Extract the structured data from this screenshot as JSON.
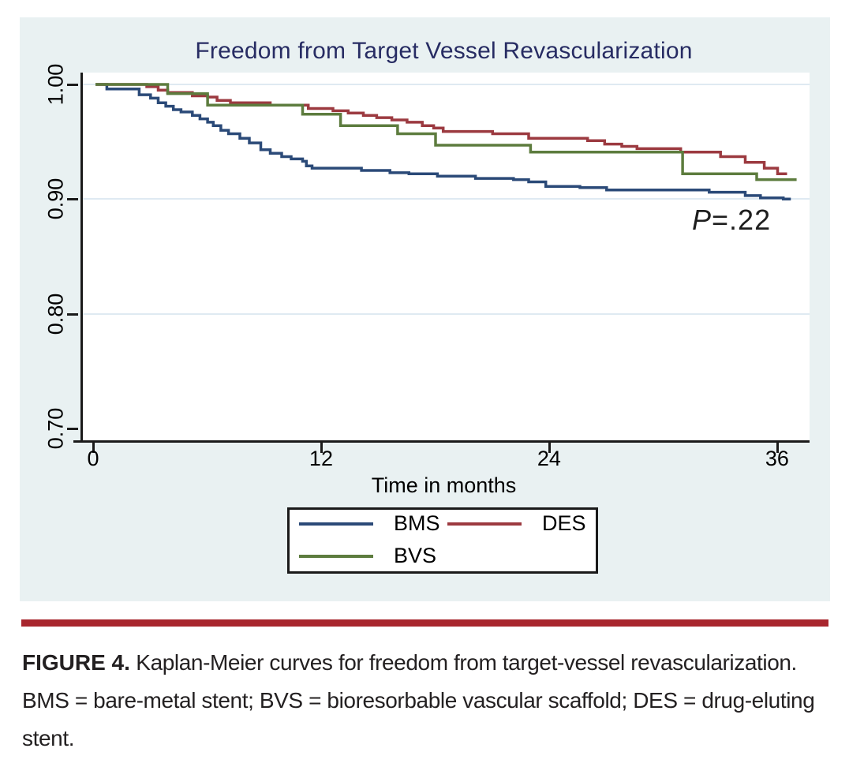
{
  "chart_data": {
    "type": "line",
    "step": true,
    "title": "Freedom from Target Vessel Revascularization",
    "xlabel": "Time in months",
    "ylabel": "",
    "xlim": [
      0,
      37.5
    ],
    "ylim": [
      0.69,
      1.005
    ],
    "xticks": [
      {
        "value": 0,
        "label": "0"
      },
      {
        "value": 12,
        "label": "12"
      },
      {
        "value": 24,
        "label": "24"
      },
      {
        "value": 36,
        "label": "36"
      }
    ],
    "yticks": [
      {
        "value": 1.0,
        "label": "1.00"
      },
      {
        "value": 0.9,
        "label": "0.90"
      },
      {
        "value": 0.8,
        "label": "0.80"
      },
      {
        "value": 0.7,
        "label": "0.70"
      }
    ],
    "grid_lines": [
      1.0,
      0.9,
      0.8
    ],
    "legend_position": "below",
    "annotation": {
      "italic": "P",
      "text": "=.22"
    },
    "series": [
      {
        "name": "BMS",
        "color": "#2b4a78",
        "points": [
          [
            0,
            1.0
          ],
          [
            0.6,
            0.996
          ],
          [
            2.3,
            0.991
          ],
          [
            2.9,
            0.988
          ],
          [
            3.3,
            0.984
          ],
          [
            3.7,
            0.981
          ],
          [
            4.1,
            0.978
          ],
          [
            4.5,
            0.976
          ],
          [
            5.1,
            0.973
          ],
          [
            5.5,
            0.97
          ],
          [
            5.9,
            0.967
          ],
          [
            6.2,
            0.964
          ],
          [
            6.6,
            0.96
          ],
          [
            7.0,
            0.957
          ],
          [
            7.6,
            0.953
          ],
          [
            8.1,
            0.949
          ],
          [
            8.7,
            0.943
          ],
          [
            9.2,
            0.94
          ],
          [
            9.8,
            0.937
          ],
          [
            10.3,
            0.935
          ],
          [
            10.9,
            0.933
          ],
          [
            11.1,
            0.929
          ],
          [
            11.4,
            0.927
          ],
          [
            14.0,
            0.925
          ],
          [
            15.5,
            0.923
          ],
          [
            16.5,
            0.922
          ],
          [
            18.0,
            0.92
          ],
          [
            20.0,
            0.918
          ],
          [
            22.0,
            0.917
          ],
          [
            22.8,
            0.915
          ],
          [
            23.7,
            0.911
          ],
          [
            25.5,
            0.91
          ],
          [
            26.9,
            0.908
          ],
          [
            32.3,
            0.906
          ],
          [
            34.2,
            0.903
          ],
          [
            35.0,
            0.901
          ],
          [
            36.2,
            0.9
          ],
          [
            36.6,
            0.9
          ]
        ]
      },
      {
        "name": "DES",
        "color": "#9c3a40",
        "points": [
          [
            0,
            1.0
          ],
          [
            2.7,
            0.998
          ],
          [
            3.3,
            0.995
          ],
          [
            3.8,
            0.993
          ],
          [
            5.1,
            0.99
          ],
          [
            5.9,
            0.989
          ],
          [
            6.4,
            0.986
          ],
          [
            7.1,
            0.984
          ],
          [
            9.2,
            0.982
          ],
          [
            11.2,
            0.979
          ],
          [
            12.5,
            0.977
          ],
          [
            13.3,
            0.975
          ],
          [
            14.1,
            0.973
          ],
          [
            14.8,
            0.971
          ],
          [
            15.6,
            0.969
          ],
          [
            16.4,
            0.967
          ],
          [
            17.2,
            0.964
          ],
          [
            17.8,
            0.962
          ],
          [
            18.3,
            0.959
          ],
          [
            20.9,
            0.957
          ],
          [
            22.8,
            0.953
          ],
          [
            25.9,
            0.951
          ],
          [
            26.8,
            0.948
          ],
          [
            27.7,
            0.946
          ],
          [
            28.5,
            0.944
          ],
          [
            30.8,
            0.941
          ],
          [
            32.9,
            0.937
          ],
          [
            34.2,
            0.932
          ],
          [
            35.2,
            0.927
          ],
          [
            35.9,
            0.922
          ],
          [
            36.4,
            0.922
          ]
        ]
      },
      {
        "name": "BVS",
        "color": "#5d7c3e",
        "points": [
          [
            0,
            1.0
          ],
          [
            3.8,
            0.992
          ],
          [
            5.9,
            0.982
          ],
          [
            10.9,
            0.974
          ],
          [
            12.9,
            0.964
          ],
          [
            15.9,
            0.957
          ],
          [
            17.9,
            0.947
          ],
          [
            22.9,
            0.941
          ],
          [
            30.9,
            0.922
          ],
          [
            34.8,
            0.917
          ],
          [
            36.9,
            0.917
          ]
        ]
      }
    ]
  },
  "caption": {
    "label": "FIGURE 4.",
    "text": " Kaplan-Meier curves for freedom from target-vessel revascularization. BMS = bare-metal stent; BVS = bioresorbable vascular scaffold; DES = drug-eluting stent."
  },
  "colors": {
    "panel_background": "#e9f1f2",
    "plot_background": "#ffffff",
    "title_navy": "#272c63",
    "axis_black": "#1a1a1a",
    "divider_red": "#a8262e"
  }
}
